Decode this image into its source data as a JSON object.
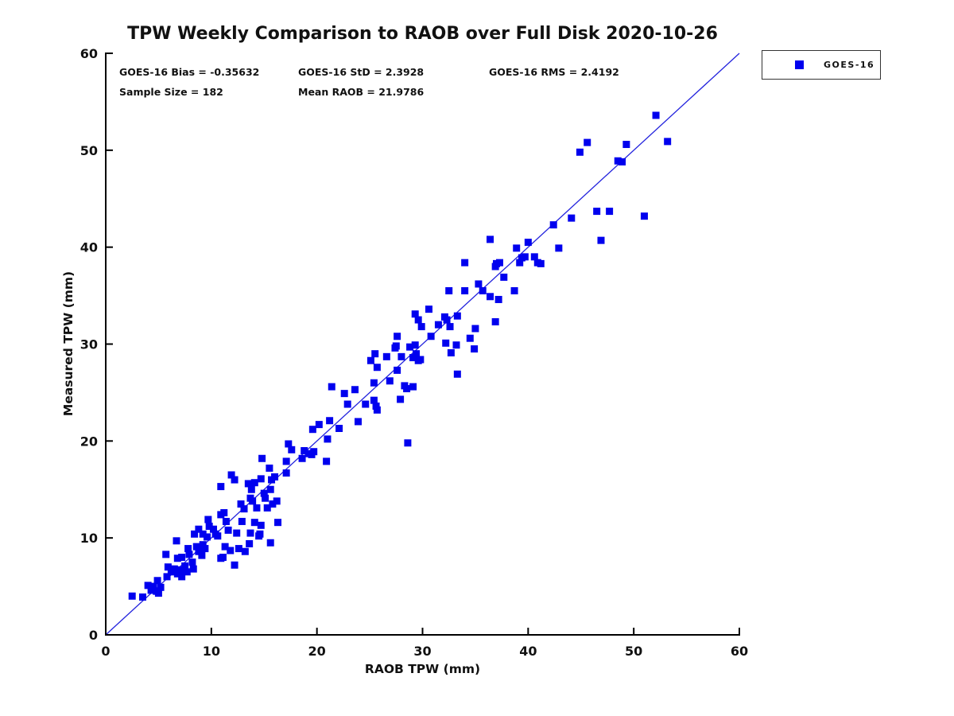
{
  "title": "TPW Weekly Comparison to RAOB over Full Disk 2020-10-26",
  "stats": {
    "bias": "GOES-16 Bias = -0.35632",
    "std": "GOES-16 StD = 2.3928",
    "rms": "GOES-16 RMS = 2.4192",
    "sample_size": "Sample Size = 182",
    "mean_raob": "Mean RAOB = 21.9786"
  },
  "legend": {
    "label": "GOES-16"
  },
  "colors": {
    "marker": "#0000ee",
    "identity_line": "#2222dd",
    "axis": "#000000",
    "text": "#111111"
  },
  "chart_data": {
    "type": "scatter",
    "title": "TPW Weekly Comparison to RAOB over Full Disk 2020-10-26",
    "xlabel": "RAOB TPW (mm)",
    "ylabel": "Measured TPW (mm)",
    "xlim": [
      0,
      60
    ],
    "ylim": [
      0,
      60
    ],
    "x_ticks": [
      0,
      10,
      20,
      30,
      40,
      50,
      60
    ],
    "y_ticks": [
      0,
      10,
      20,
      30,
      40,
      50,
      60
    ],
    "grid": false,
    "legend_position": "outside-top-right",
    "identity_line": {
      "x": [
        0,
        60
      ],
      "y": [
        0,
        60
      ]
    },
    "series": [
      {
        "name": "GOES-16",
        "marker": "square",
        "color": "#0000ee",
        "points": [
          [
            2.5,
            4.0
          ],
          [
            3.5,
            3.9
          ],
          [
            4.0,
            5.1
          ],
          [
            4.3,
            4.6
          ],
          [
            4.5,
            5.0
          ],
          [
            4.8,
            4.5
          ],
          [
            4.9,
            5.6
          ],
          [
            5.0,
            4.3
          ],
          [
            5.2,
            4.9
          ],
          [
            5.7,
            8.3
          ],
          [
            5.8,
            6.0
          ],
          [
            5.9,
            7.0
          ],
          [
            6.2,
            6.5
          ],
          [
            6.5,
            6.8
          ],
          [
            6.7,
            9.7
          ],
          [
            6.8,
            6.3
          ],
          [
            6.8,
            7.9
          ],
          [
            7.1,
            6.7
          ],
          [
            7.2,
            6.0
          ],
          [
            7.2,
            8.0
          ],
          [
            7.5,
            7.1
          ],
          [
            7.7,
            6.5
          ],
          [
            7.8,
            8.9
          ],
          [
            7.9,
            8.3
          ],
          [
            8.2,
            7.5
          ],
          [
            8.3,
            6.8
          ],
          [
            8.4,
            10.4
          ],
          [
            8.6,
            9.1
          ],
          [
            8.8,
            8.6
          ],
          [
            8.8,
            10.9
          ],
          [
            9.1,
            8.2
          ],
          [
            9.2,
            9.3
          ],
          [
            9.2,
            10.4
          ],
          [
            9.4,
            8.9
          ],
          [
            9.6,
            10.1
          ],
          [
            9.7,
            11.9
          ],
          [
            9.8,
            11.2
          ],
          [
            10.2,
            10.9
          ],
          [
            10.4,
            10.4
          ],
          [
            10.6,
            10.2
          ],
          [
            10.9,
            7.9
          ],
          [
            11.1,
            8.0
          ],
          [
            10.9,
            12.4
          ],
          [
            10.9,
            15.3
          ],
          [
            11.2,
            12.6
          ],
          [
            11.3,
            9.1
          ],
          [
            11.4,
            11.7
          ],
          [
            11.6,
            10.8
          ],
          [
            11.8,
            8.7
          ],
          [
            11.9,
            16.5
          ],
          [
            12.2,
            7.2
          ],
          [
            12.2,
            16.0
          ],
          [
            12.4,
            10.5
          ],
          [
            12.6,
            8.9
          ],
          [
            12.8,
            13.5
          ],
          [
            12.9,
            11.7
          ],
          [
            13.1,
            13.0
          ],
          [
            13.2,
            8.6
          ],
          [
            13.5,
            15.6
          ],
          [
            13.6,
            9.4
          ],
          [
            13.7,
            10.5
          ],
          [
            13.7,
            14.1
          ],
          [
            13.8,
            15.0
          ],
          [
            13.9,
            13.8
          ],
          [
            14.1,
            11.6
          ],
          [
            14.1,
            15.7
          ],
          [
            14.3,
            13.1
          ],
          [
            14.5,
            10.2
          ],
          [
            14.6,
            10.4
          ],
          [
            14.7,
            11.3
          ],
          [
            14.7,
            16.1
          ],
          [
            14.8,
            18.2
          ],
          [
            15.0,
            14.6
          ],
          [
            15.1,
            14.1
          ],
          [
            15.3,
            13.1
          ],
          [
            15.5,
            17.2
          ],
          [
            15.6,
            9.5
          ],
          [
            15.6,
            15.0
          ],
          [
            15.7,
            16.0
          ],
          [
            15.8,
            13.5
          ],
          [
            16.2,
            13.8
          ],
          [
            16.3,
            11.6
          ],
          [
            16.0,
            16.3
          ],
          [
            17.1,
            16.7
          ],
          [
            17.1,
            17.9
          ],
          [
            17.3,
            19.7
          ],
          [
            17.6,
            19.1
          ],
          [
            18.6,
            18.2
          ],
          [
            18.8,
            19.0
          ],
          [
            19.2,
            18.7
          ],
          [
            19.5,
            18.6
          ],
          [
            19.7,
            18.9
          ],
          [
            19.6,
            21.2
          ],
          [
            20.2,
            21.7
          ],
          [
            20.9,
            17.9
          ],
          [
            21.0,
            20.2
          ],
          [
            21.2,
            22.1
          ],
          [
            21.4,
            25.6
          ],
          [
            22.1,
            21.3
          ],
          [
            22.6,
            24.9
          ],
          [
            22.9,
            23.8
          ],
          [
            23.6,
            25.3
          ],
          [
            23.9,
            22.0
          ],
          [
            24.6,
            23.8
          ],
          [
            25.1,
            28.3
          ],
          [
            25.4,
            24.2
          ],
          [
            25.4,
            26.0
          ],
          [
            25.5,
            29.0
          ],
          [
            25.6,
            23.6
          ],
          [
            25.7,
            23.2
          ],
          [
            25.7,
            27.6
          ],
          [
            26.6,
            28.7
          ],
          [
            26.9,
            26.2
          ],
          [
            27.4,
            29.6
          ],
          [
            27.5,
            29.8
          ],
          [
            27.6,
            27.3
          ],
          [
            27.6,
            30.8
          ],
          [
            27.9,
            24.3
          ],
          [
            28.0,
            28.7
          ],
          [
            28.3,
            25.7
          ],
          [
            28.5,
            25.4
          ],
          [
            28.6,
            19.8
          ],
          [
            28.8,
            29.7
          ],
          [
            29.1,
            25.6
          ],
          [
            29.1,
            28.6
          ],
          [
            29.3,
            29.9
          ],
          [
            29.3,
            33.1
          ],
          [
            29.4,
            29.0
          ],
          [
            29.6,
            28.3
          ],
          [
            29.6,
            32.5
          ],
          [
            29.8,
            28.4
          ],
          [
            29.9,
            31.8
          ],
          [
            30.6,
            33.6
          ],
          [
            30.8,
            30.8
          ],
          [
            31.5,
            32.0
          ],
          [
            32.1,
            32.8
          ],
          [
            32.2,
            30.1
          ],
          [
            32.3,
            32.5
          ],
          [
            32.5,
            35.5
          ],
          [
            32.6,
            31.8
          ],
          [
            32.7,
            29.1
          ],
          [
            33.2,
            29.9
          ],
          [
            33.3,
            26.9
          ],
          [
            33.3,
            32.9
          ],
          [
            34.0,
            35.5
          ],
          [
            34.0,
            38.4
          ],
          [
            34.5,
            30.6
          ],
          [
            34.9,
            29.5
          ],
          [
            35.0,
            31.6
          ],
          [
            35.3,
            36.2
          ],
          [
            35.7,
            35.5
          ],
          [
            36.4,
            34.9
          ],
          [
            36.4,
            40.8
          ],
          [
            36.9,
            32.3
          ],
          [
            36.9,
            38.0
          ],
          [
            37.2,
            34.6
          ],
          [
            37.0,
            38.3
          ],
          [
            37.3,
            38.4
          ],
          [
            37.7,
            36.9
          ],
          [
            38.7,
            35.5
          ],
          [
            38.9,
            39.9
          ],
          [
            39.2,
            38.4
          ],
          [
            39.4,
            38.9
          ],
          [
            39.7,
            39.0
          ],
          [
            40.0,
            40.5
          ],
          [
            40.6,
            39.0
          ],
          [
            40.9,
            38.4
          ],
          [
            41.2,
            38.3
          ],
          [
            42.4,
            42.3
          ],
          [
            42.9,
            39.9
          ],
          [
            44.1,
            43.0
          ],
          [
            44.9,
            49.8
          ],
          [
            45.6,
            50.8
          ],
          [
            46.5,
            43.7
          ],
          [
            46.9,
            40.7
          ],
          [
            47.7,
            43.7
          ],
          [
            48.5,
            48.9
          ],
          [
            48.9,
            48.8
          ],
          [
            49.3,
            50.6
          ],
          [
            51.0,
            43.2
          ],
          [
            52.1,
            53.6
          ],
          [
            53.2,
            50.9
          ]
        ]
      }
    ]
  }
}
